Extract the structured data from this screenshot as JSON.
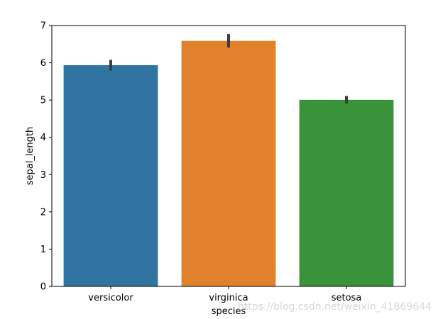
{
  "chart_data": {
    "type": "bar",
    "categories": [
      "versicolor",
      "virginica",
      "setosa"
    ],
    "values": [
      5.936,
      6.588,
      5.006
    ],
    "error_bars": [
      [
        5.79,
        6.08
      ],
      [
        6.41,
        6.77
      ],
      [
        4.91,
        5.11
      ]
    ],
    "colors": [
      "#3274a1",
      "#e1812c",
      "#3a923a"
    ],
    "xlabel": "species",
    "ylabel": "sepal_length",
    "ylim": [
      0,
      7
    ],
    "yticks": [
      "0",
      "1",
      "2",
      "3",
      "4",
      "5",
      "6",
      "7"
    ],
    "grid": false
  },
  "watermark": "https://blog.csdn.net/weixin_41869644"
}
